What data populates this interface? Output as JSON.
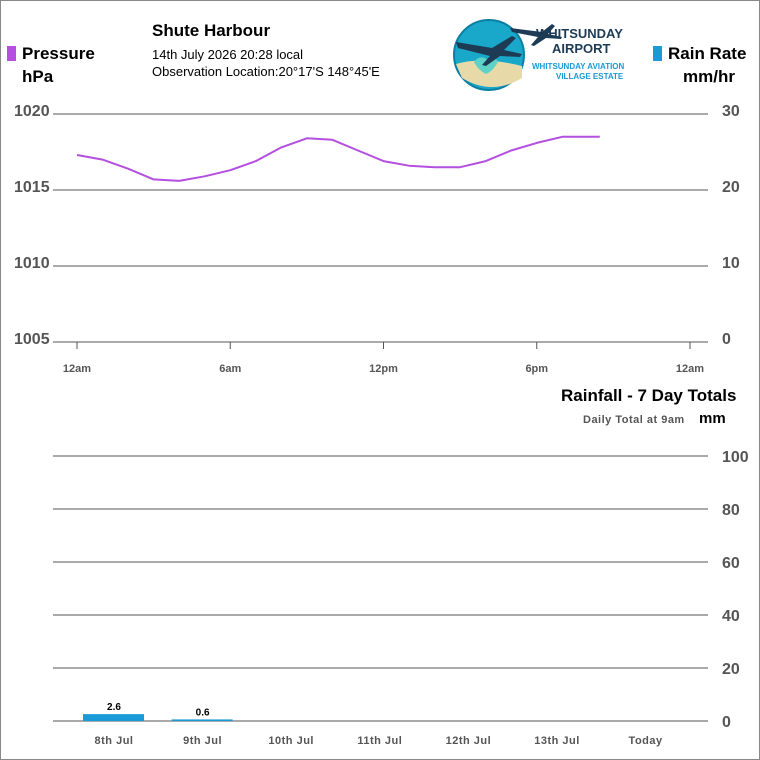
{
  "header": {
    "location": "Shute Harbour",
    "datetime": "14th July 2026  20:28 local",
    "observation": "Observation Location:20°17'S 148°45'E"
  },
  "logo": {
    "line1": "WHITSUNDAY",
    "line2": "AIRPORT",
    "line3": "WHITSUNDAY AVIATION",
    "line4": "VILLAGE ESTATE",
    "icon": "aircraft-logo-icon"
  },
  "legend": {
    "pressure_label": "Pressure",
    "pressure_unit": "hPa",
    "pressure_color": "#b44fe0",
    "rain_label": "Rain Rate",
    "rain_unit": "mm/hr",
    "rain_color": "#1a9ad6"
  },
  "rain_panel": {
    "title": "Rainfall - 7 Day Totals",
    "subtitle": "Daily Total at 9am",
    "unit": "mm"
  },
  "chart_data": [
    {
      "type": "line",
      "title": "",
      "series": [
        {
          "name": "Pressure",
          "color": "#b44fe0",
          "x": [
            "00:00",
            "01:00",
            "02:00",
            "03:00",
            "04:00",
            "05:00",
            "06:00",
            "07:00",
            "08:00",
            "09:00",
            "10:00",
            "11:00",
            "12:00",
            "13:00",
            "14:00",
            "15:00",
            "16:00",
            "17:00",
            "18:00",
            "19:00",
            "20:00",
            "20:28"
          ],
          "values": [
            1017.3,
            1017.0,
            1016.4,
            1015.7,
            1015.6,
            1015.9,
            1016.3,
            1016.9,
            1017.8,
            1018.4,
            1018.3,
            1017.6,
            1016.9,
            1016.6,
            1016.5,
            1016.5,
            1016.9,
            1017.6,
            1018.1,
            1018.5,
            1018.5,
            1018.5
          ]
        }
      ],
      "left_axis": {
        "label": "hPa",
        "ylim": [
          1005,
          1020
        ],
        "ticks": [
          "1020",
          "1015",
          "1010",
          "1005"
        ]
      },
      "right_axis": {
        "label": "mm/hr",
        "ylim": [
          0,
          30
        ],
        "ticks": [
          "30",
          "20",
          "10",
          "0"
        ]
      },
      "x_ticks": [
        "12am",
        "6am",
        "12pm",
        "6pm",
        "12am"
      ],
      "grid": true
    },
    {
      "type": "bar",
      "title": "Rainfall - 7 Day Totals",
      "categories": [
        "8th Jul",
        "9th Jul",
        "10th Jul",
        "11th Jul",
        "12th Jul",
        "13th Jul",
        "Today"
      ],
      "values": [
        2.6,
        0.6,
        0,
        0,
        0,
        0,
        0
      ],
      "data_labels": [
        "2.6",
        "0.6",
        "",
        "",
        "",
        "",
        ""
      ],
      "bar_color": "#1a9ad6",
      "ylabel": "mm",
      "ylim": [
        0,
        100
      ],
      "y_ticks": [
        "100",
        "80",
        "60",
        "40",
        "20",
        "0"
      ],
      "grid": true
    }
  ]
}
